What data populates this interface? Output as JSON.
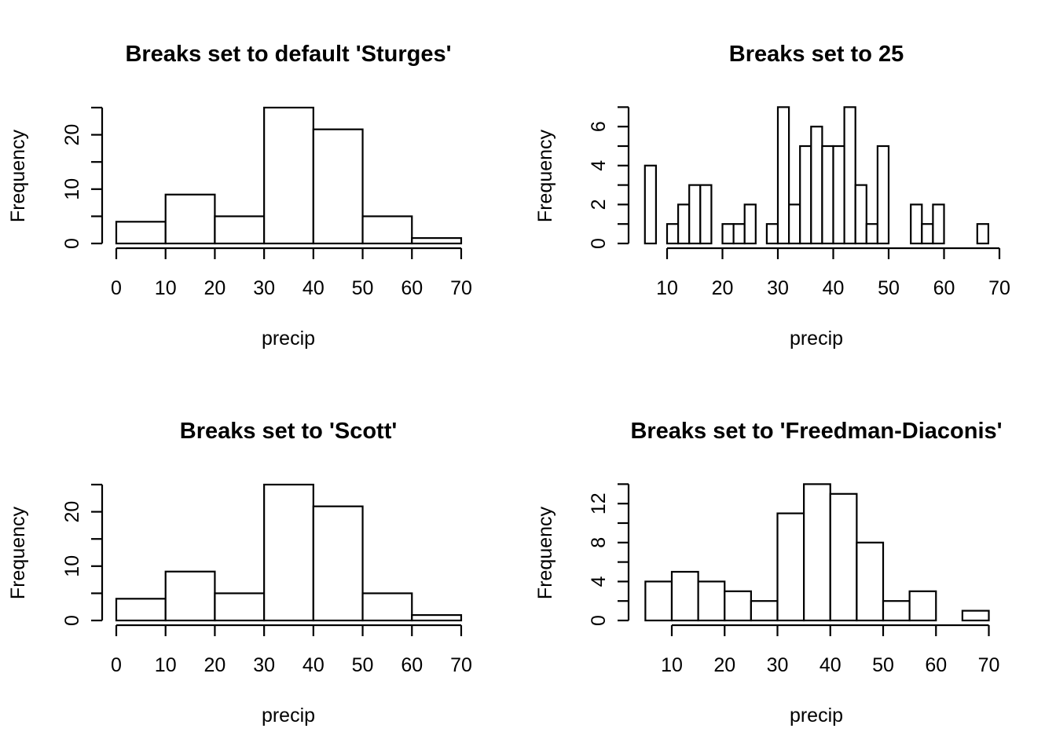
{
  "chart_data": [
    {
      "type": "bar",
      "title": "Breaks set to default 'Sturges'",
      "xlabel": "precip",
      "ylabel": "Frequency",
      "breaks": [
        0,
        10,
        20,
        30,
        40,
        50,
        60,
        70
      ],
      "values": [
        4,
        9,
        5,
        25,
        21,
        5,
        1
      ],
      "xlim": [
        0,
        70
      ],
      "ylim": [
        0,
        25
      ],
      "xticks": [
        0,
        10,
        20,
        30,
        40,
        50,
        60,
        70
      ],
      "xtick_labels": [
        "0",
        "10",
        "20",
        "30",
        "40",
        "50",
        "60",
        "70"
      ],
      "yticks": [
        0,
        5,
        10,
        15,
        20,
        25
      ],
      "yticks_labeled": [
        0,
        10,
        20
      ],
      "ytick_labels": [
        "0",
        "10",
        "20"
      ]
    },
    {
      "type": "bar",
      "title": "Breaks set to 25",
      "xlabel": "precip",
      "ylabel": "Frequency",
      "breaks": [
        6,
        8,
        10,
        12,
        14,
        16,
        18,
        20,
        22,
        24,
        26,
        28,
        30,
        32,
        34,
        36,
        38,
        40,
        42,
        44,
        46,
        48,
        50,
        52,
        54,
        56,
        58,
        60,
        62,
        64,
        66,
        68
      ],
      "values": [
        4,
        0,
        1,
        2,
        3,
        3,
        0,
        1,
        1,
        2,
        0,
        1,
        7,
        2,
        5,
        6,
        5,
        5,
        7,
        3,
        1,
        5,
        0,
        0,
        2,
        1,
        2,
        0,
        0,
        0,
        1
      ],
      "xlim": [
        10,
        70
      ],
      "ylim": [
        0,
        7
      ],
      "xticks": [
        10,
        20,
        30,
        40,
        50,
        60,
        70
      ],
      "xtick_labels": [
        "10",
        "20",
        "30",
        "40",
        "50",
        "60",
        "70"
      ],
      "yticks": [
        0,
        1,
        2,
        3,
        4,
        5,
        6,
        7
      ],
      "yticks_labeled": [
        0,
        2,
        4,
        6
      ],
      "ytick_labels": [
        "0",
        "2",
        "4",
        "6"
      ]
    },
    {
      "type": "bar",
      "title": "Breaks set to 'Scott'",
      "xlabel": "precip",
      "ylabel": "Frequency",
      "breaks": [
        0,
        10,
        20,
        30,
        40,
        50,
        60,
        70
      ],
      "values": [
        4,
        9,
        5,
        25,
        21,
        5,
        1
      ],
      "xlim": [
        0,
        70
      ],
      "ylim": [
        0,
        25
      ],
      "xticks": [
        0,
        10,
        20,
        30,
        40,
        50,
        60,
        70
      ],
      "xtick_labels": [
        "0",
        "10",
        "20",
        "30",
        "40",
        "50",
        "60",
        "70"
      ],
      "yticks": [
        0,
        5,
        10,
        15,
        20,
        25
      ],
      "yticks_labeled": [
        0,
        10,
        20
      ],
      "ytick_labels": [
        "0",
        "10",
        "20"
      ]
    },
    {
      "type": "bar",
      "title": "Breaks set to 'Freedman-Diaconis'",
      "xlabel": "precip",
      "ylabel": "Frequency",
      "breaks": [
        5,
        10,
        15,
        20,
        25,
        30,
        35,
        40,
        45,
        50,
        55,
        60,
        65,
        70
      ],
      "values": [
        4,
        5,
        4,
        3,
        2,
        11,
        14,
        13,
        8,
        2,
        3,
        0,
        1
      ],
      "xlim": [
        10,
        70
      ],
      "ylim": [
        0,
        14
      ],
      "xticks": [
        10,
        20,
        30,
        40,
        50,
        60,
        70
      ],
      "xtick_labels": [
        "10",
        "20",
        "30",
        "40",
        "50",
        "60",
        "70"
      ],
      "yticks": [
        0,
        2,
        4,
        6,
        8,
        10,
        12,
        14
      ],
      "yticks_labeled": [
        0,
        4,
        8,
        12
      ],
      "ytick_labels": [
        "0",
        "4",
        "8",
        "12"
      ]
    }
  ]
}
